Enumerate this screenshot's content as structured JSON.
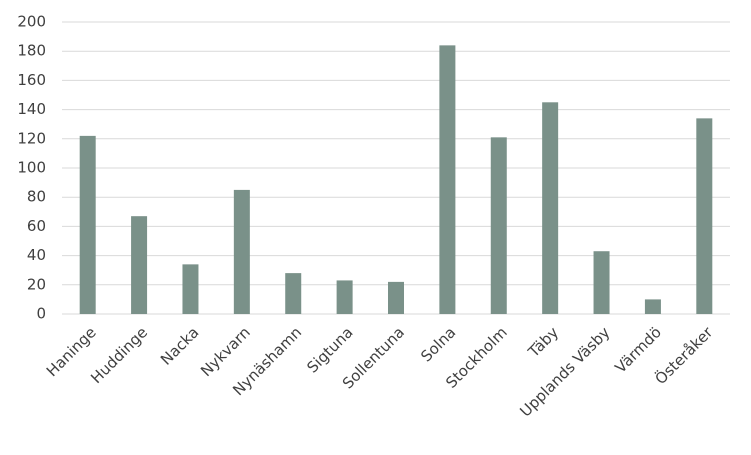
{
  "chart_data": {
    "type": "bar",
    "categories": [
      "Haninge",
      "Huddinge",
      "Nacka",
      "Nykvarn",
      "Nynäshamn",
      "Sigtuna",
      "Sollentuna",
      "Solna",
      "Stockholm",
      "Täby",
      "Upplands Väsby",
      "Värmdö",
      "Österåker"
    ],
    "values": [
      122,
      67,
      34,
      85,
      28,
      23,
      22,
      184,
      121,
      145,
      43,
      10,
      134
    ],
    "color": "#7a9189",
    "ylim": [
      0,
      200
    ],
    "yticks": [
      0,
      20,
      40,
      60,
      80,
      100,
      120,
      140,
      160,
      180,
      200
    ],
    "grid": true
  }
}
